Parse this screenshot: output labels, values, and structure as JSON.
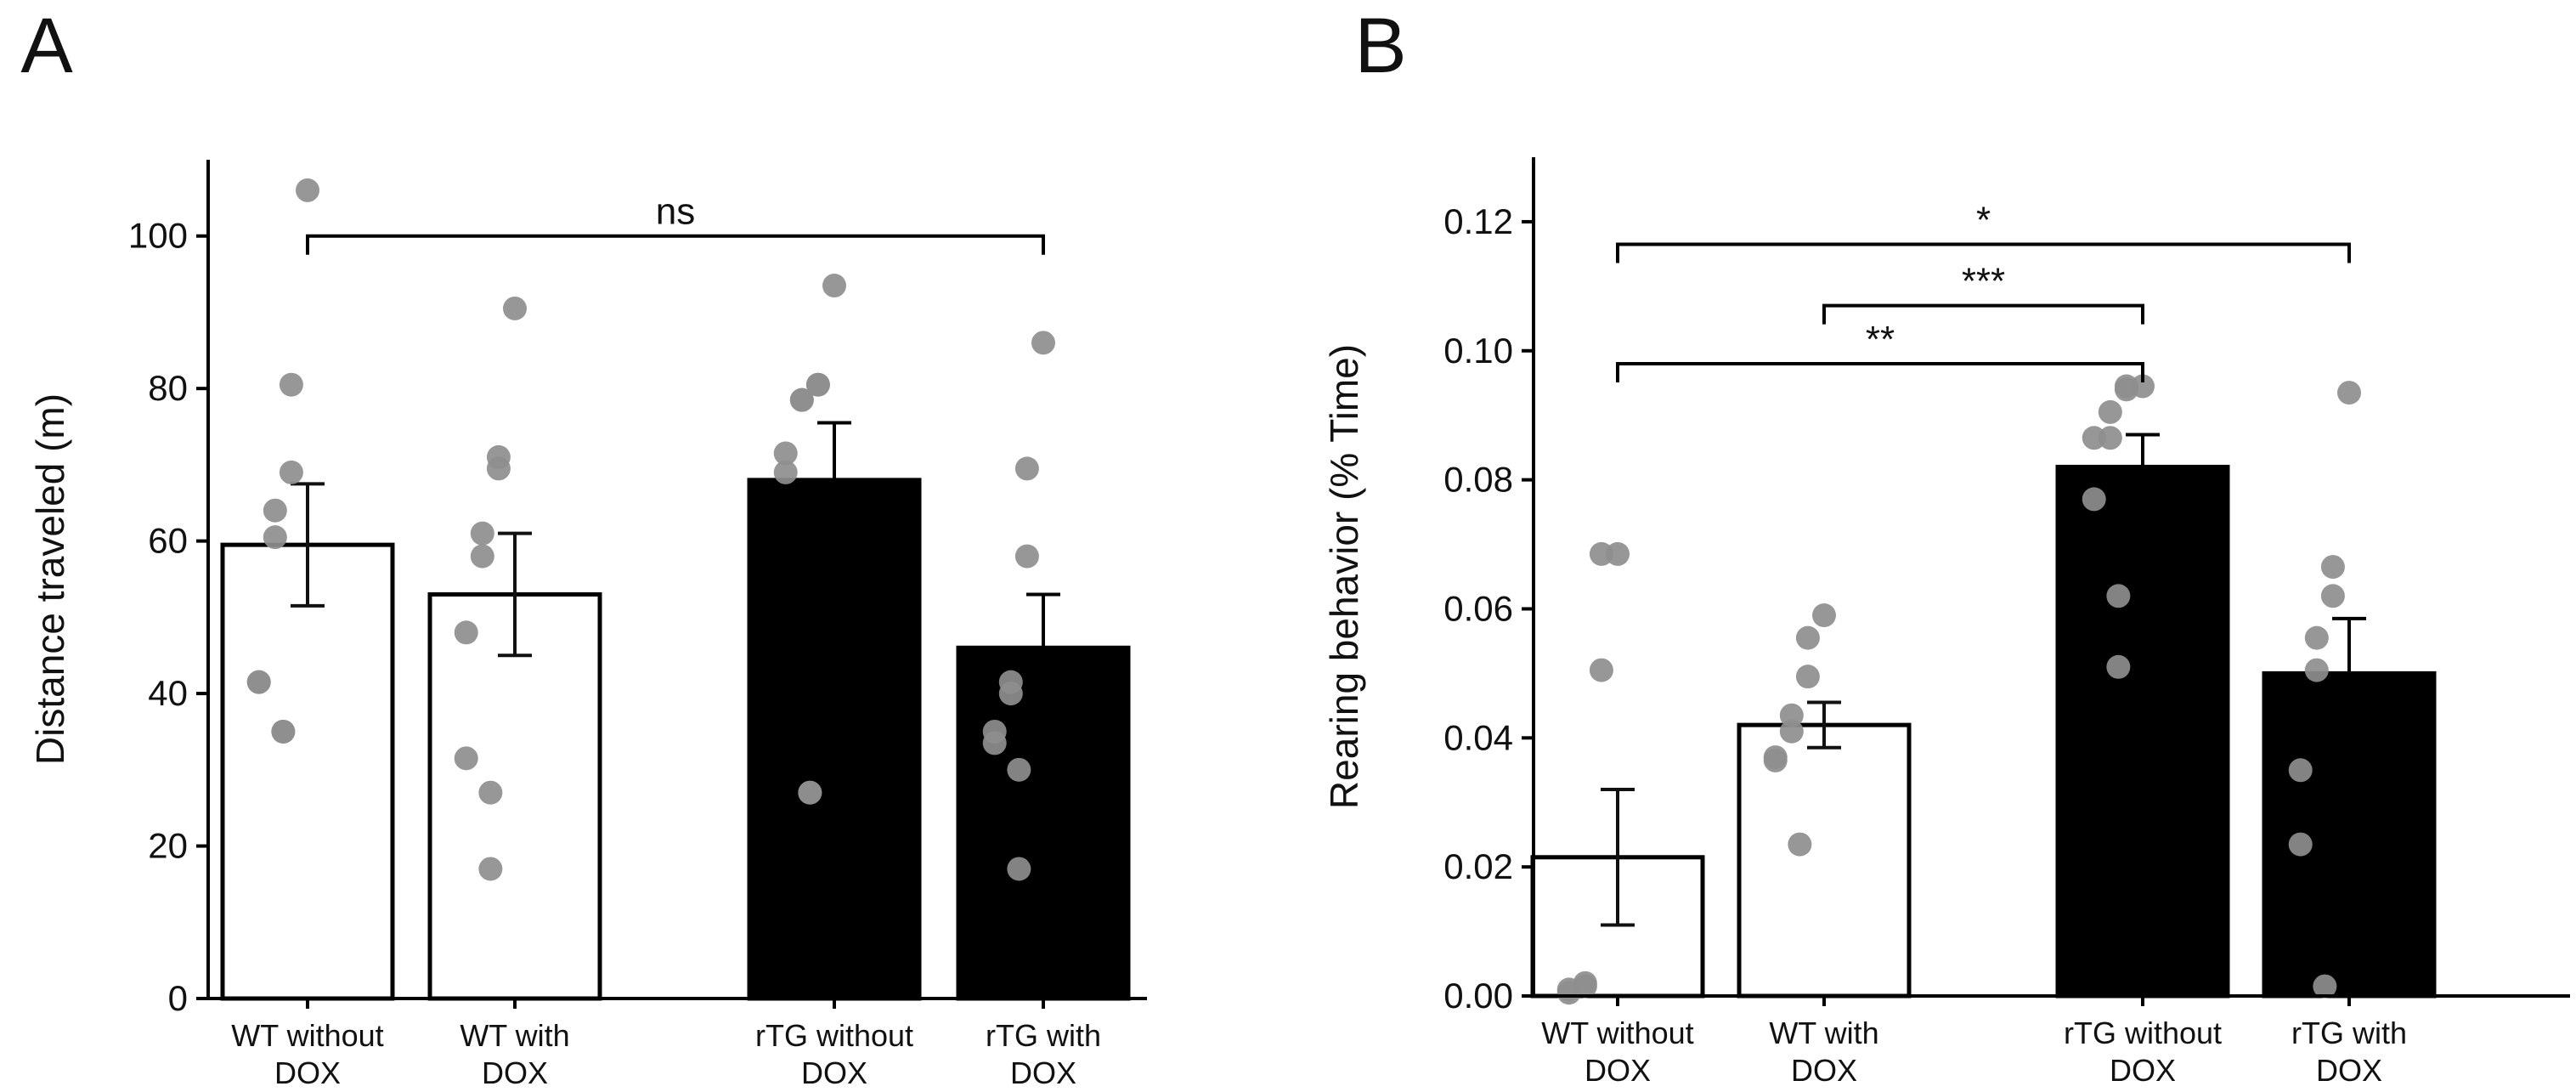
{
  "chart_data": [
    {
      "panel_label": "A",
      "type": "bar",
      "categories": [
        "WT without\nDOX",
        "WT with\nDOX",
        "rTG without\nDOX",
        "rTG with\nDOX"
      ],
      "values": [
        59.5,
        53,
        68,
        46
      ],
      "errors": [
        8,
        8,
        7.5,
        7
      ],
      "fills": [
        "#ffffff",
        "#ffffff",
        "#000000",
        "#000000"
      ],
      "points": [
        [
          106,
          80.5,
          69,
          64,
          60.5,
          41.5,
          41.5,
          35,
          35
        ],
        [
          90.5,
          71,
          69.5,
          61,
          58,
          48,
          31.5,
          27,
          17
        ],
        [
          93.5,
          80.5,
          80.5,
          78.5,
          78.5,
          71.5,
          69,
          27,
          27
        ],
        [
          86,
          69.5,
          58,
          41.5,
          40,
          35,
          33.5,
          30,
          17
        ]
      ],
      "ylabel": "Distance traveled (m)",
      "xlabel": "",
      "ylim": [
        0,
        110
      ],
      "yticks": [
        0,
        20,
        40,
        60,
        80,
        100
      ],
      "significance": [
        {
          "from": 0,
          "to": 3,
          "y": 100,
          "label": "ns"
        }
      ]
    },
    {
      "panel_label": "B",
      "type": "bar",
      "categories": [
        "WT without\nDOX",
        "WT with\nDOX",
        "rTG without\nDOX",
        "rTG with\nDOX"
      ],
      "values": [
        0.0215,
        0.042,
        0.082,
        0.05
      ],
      "errors": [
        0.0105,
        0.0035,
        0.005,
        0.0085
      ],
      "fills": [
        "#ffffff",
        "#ffffff",
        "#000000",
        "#000000"
      ],
      "points": [
        [
          0.0685,
          0.0685,
          0.0505,
          0.002,
          0.0015,
          0.001,
          0.0005
        ],
        [
          0.059,
          0.0555,
          0.0495,
          0.0435,
          0.041,
          0.037,
          0.0365,
          0.0235
        ],
        [
          0.0945,
          0.0945,
          0.094,
          0.0905,
          0.0865,
          0.0865,
          0.077,
          0.062,
          0.051
        ],
        [
          0.0935,
          0.0665,
          0.062,
          0.0555,
          0.0505,
          0.035,
          0.0235,
          0.0015
        ]
      ],
      "ylabel": "Rearing behavior (% Time)",
      "xlabel": "",
      "ylim": [
        0,
        0.13
      ],
      "yticks": [
        0.0,
        0.02,
        0.04,
        0.06,
        0.08,
        0.1,
        0.12
      ],
      "significance": [
        {
          "from": 0,
          "to": 3,
          "y": 0.1165,
          "label": "*"
        },
        {
          "from": 1,
          "to": 2,
          "y": 0.107,
          "label": "***"
        },
        {
          "from": 0,
          "to": 2,
          "y": 0.098,
          "label": "**"
        }
      ]
    }
  ]
}
